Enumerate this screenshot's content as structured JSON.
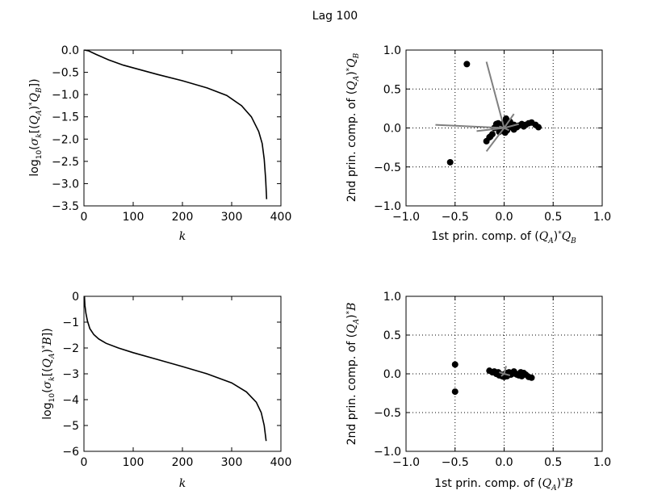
{
  "figure": {
    "title": "Lag 100"
  },
  "chart_data": [
    {
      "id": "p1",
      "type": "line",
      "xlabel": "k",
      "ylabel": "log10(σk[(QA)*QB])",
      "xlim": [
        0,
        400
      ],
      "ylim": [
        -3.5,
        0.0
      ],
      "xticks": [
        0,
        100,
        200,
        300,
        400
      ],
      "yticks": [
        0.0,
        -0.5,
        -1.0,
        -1.5,
        -2.0,
        -2.5,
        -3.0,
        -3.5
      ],
      "ytick_labels": [
        "0.0",
        "−0.5",
        "−1.0",
        "−1.5",
        "−2.0",
        "−2.5",
        "−3.0",
        "−3.5"
      ],
      "grid": false,
      "series": [
        {
          "color": "#000000",
          "x": [
            1,
            10,
            25,
            50,
            80,
            110,
            150,
            200,
            250,
            290,
            320,
            340,
            355,
            362,
            366,
            369,
            371
          ],
          "y": [
            0.0,
            -0.02,
            -0.1,
            -0.22,
            -0.34,
            -0.43,
            -0.55,
            -0.69,
            -0.85,
            -1.02,
            -1.25,
            -1.5,
            -1.83,
            -2.1,
            -2.45,
            -2.9,
            -3.35
          ]
        }
      ]
    },
    {
      "id": "p2",
      "type": "scatter",
      "xlabel": "1st prin. comp. of (QA)*QB",
      "ylabel": "2nd prin. comp. of (QA)*QB",
      "xlim": [
        -1.0,
        1.0
      ],
      "ylim": [
        -1.0,
        1.0
      ],
      "xticks": [
        -1.0,
        -0.5,
        0.0,
        0.5,
        1.0
      ],
      "yticks": [
        1.0,
        0.5,
        0.0,
        -0.5,
        -1.0
      ],
      "xtick_labels": [
        "−1.0",
        "−0.5",
        "0.0",
        "0.5",
        "1.0"
      ],
      "ytick_labels": [
        "1.0",
        "0.5",
        "0.0",
        "−0.5",
        "−1.0"
      ],
      "grid": true,
      "points": {
        "color": "#000000",
        "x": [
          -0.38,
          -0.55,
          -0.18,
          -0.12,
          -0.08,
          -0.06,
          -0.04,
          -0.02,
          0.0,
          0.02,
          0.04,
          0.06,
          0.08,
          0.1,
          0.12,
          0.15,
          0.18,
          0.2,
          0.22,
          0.25,
          0.28,
          0.32,
          0.35,
          -0.1,
          -0.05,
          0.0,
          0.03,
          0.05,
          0.07,
          0.1,
          0.13,
          -0.14,
          -0.15,
          0.01,
          -0.03
        ],
        "y": [
          0.82,
          -0.44,
          -0.17,
          -0.08,
          0.05,
          0.06,
          -0.02,
          0.03,
          0.07,
          0.12,
          0.05,
          0.08,
          0.03,
          0.04,
          0.02,
          0.03,
          0.05,
          0.02,
          0.04,
          0.06,
          0.07,
          0.04,
          0.01,
          0.0,
          -0.05,
          0.0,
          -0.03,
          0.02,
          0.01,
          -0.02,
          0.01,
          -0.11,
          -0.12,
          -0.06,
          0.02
        ]
      },
      "vectors": {
        "color": "#808080",
        "segments": [
          [
            0.0,
            0.0,
            -0.18,
            0.85
          ],
          [
            0.0,
            0.0,
            -0.7,
            0.04
          ],
          [
            0.0,
            0.0,
            -0.28,
            -0.04
          ],
          [
            0.0,
            0.0,
            -0.18,
            -0.3
          ],
          [
            0.0,
            0.0,
            0.1,
            0.18
          ],
          [
            0.0,
            0.0,
            0.15,
            0.05
          ],
          [
            0.0,
            0.0,
            0.05,
            -0.03
          ],
          [
            0.0,
            0.0,
            -0.05,
            0.02
          ]
        ]
      }
    },
    {
      "id": "p3",
      "type": "line",
      "xlabel": "k",
      "ylabel": "log10(σk[(QA)*B])",
      "xlim": [
        0,
        400
      ],
      "ylim": [
        -6,
        0
      ],
      "xticks": [
        0,
        100,
        200,
        300,
        400
      ],
      "yticks": [
        0,
        -1,
        -2,
        -3,
        -4,
        -5,
        -6
      ],
      "ytick_labels": [
        "0",
        "−1",
        "−2",
        "−3",
        "−4",
        "−5",
        "−6"
      ],
      "grid": false,
      "series": [
        {
          "color": "#000000",
          "x": [
            1,
            2,
            4,
            7,
            12,
            20,
            30,
            45,
            70,
            100,
            150,
            200,
            250,
            300,
            330,
            350,
            360,
            366,
            370
          ],
          "y": [
            0.0,
            -0.35,
            -0.65,
            -0.95,
            -1.25,
            -1.48,
            -1.65,
            -1.82,
            -2.0,
            -2.18,
            -2.45,
            -2.72,
            -3.0,
            -3.35,
            -3.7,
            -4.1,
            -4.5,
            -5.0,
            -5.6
          ]
        }
      ]
    },
    {
      "id": "p4",
      "type": "scatter",
      "xlabel": "1st prin. comp. of (QA)*B",
      "ylabel": "2nd prin. comp. of (QA)*B",
      "xlim": [
        -1.0,
        1.0
      ],
      "ylim": [
        -1.0,
        1.0
      ],
      "xticks": [
        -1.0,
        -0.5,
        0.0,
        0.5,
        1.0
      ],
      "yticks": [
        1.0,
        0.5,
        0.0,
        -0.5,
        -1.0
      ],
      "xtick_labels": [
        "−1.0",
        "−0.5",
        "0.0",
        "0.5",
        "1.0"
      ],
      "ytick_labels": [
        "1.0",
        "0.5",
        "0.0",
        "−0.5",
        "−1.0"
      ],
      "grid": true,
      "points": {
        "color": "#000000",
        "x": [
          -0.5,
          -0.5,
          -0.15,
          -0.1,
          -0.08,
          -0.05,
          -0.02,
          0.0,
          0.02,
          0.05,
          0.07,
          0.1,
          0.12,
          0.15,
          0.18,
          0.2,
          0.22,
          0.25,
          0.28,
          -0.12,
          -0.06,
          0.03,
          0.08,
          0.13,
          0.17,
          0.01,
          -0.03
        ],
        "y": [
          0.12,
          -0.23,
          0.04,
          0.03,
          0.0,
          -0.02,
          -0.03,
          -0.04,
          0.01,
          0.02,
          -0.01,
          0.03,
          0.0,
          -0.02,
          -0.03,
          0.01,
          -0.01,
          -0.04,
          -0.05,
          0.02,
          0.02,
          -0.03,
          0.0,
          -0.01,
          0.02,
          0.0,
          -0.01
        ]
      },
      "vectors": {
        "color": "#808080",
        "segments": [
          [
            0.0,
            0.0,
            0.02,
            0.1
          ],
          [
            0.0,
            0.0,
            -0.05,
            0.02
          ],
          [
            0.0,
            0.0,
            0.06,
            -0.02
          ],
          [
            0.0,
            0.0,
            -0.03,
            -0.03
          ]
        ]
      }
    }
  ]
}
